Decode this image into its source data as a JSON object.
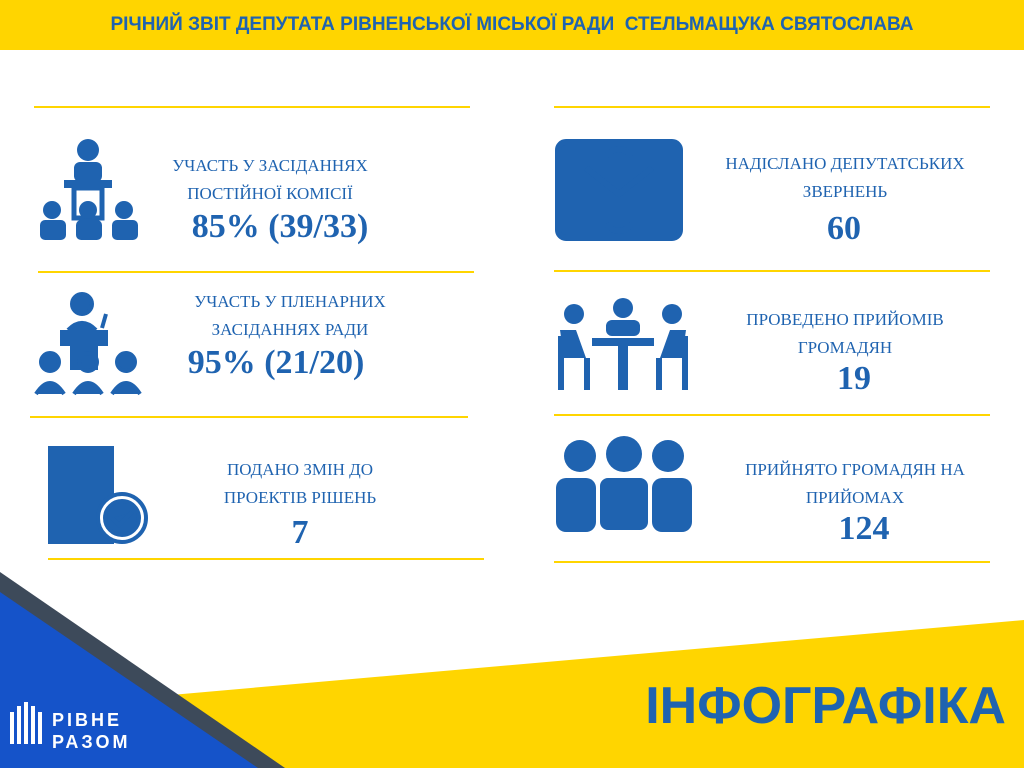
{
  "header": {
    "title": "РІЧНИЙ ЗВІТ ДЕПУТАТА РІВНЕНСЬКОЇ МІСЬКОЇ РАДИ  СТЕЛЬМАЩУКА СВЯТОСЛАВА"
  },
  "items": [
    {
      "label": [
        "УЧАСТЬ У ЗАСІДАННЯХ",
        "ПОСТІЙНОЇ КОМІСІЇ"
      ],
      "value": "85% (39/33)"
    },
    {
      "label": [
        "УЧАСТЬ У ПЛЕНАРНИХ",
        "ЗАСІДАННЯХ РАДИ"
      ],
      "value": "95% (21/20)"
    },
    {
      "label": [
        "ПОДАНО ЗМІН ДО",
        "ПРОЕКТІВ РІШЕНЬ"
      ],
      "value": 7
    },
    {
      "label": [
        "НАДІСЛАНО ДЕПУТАТСЬКИХ",
        "ЗВЕРНЕНЬ"
      ],
      "value": 60
    },
    {
      "label": [
        "ПРОВЕДЕНО ПРИЙОМІВ",
        "ГРОМАДЯН"
      ],
      "value": 19
    },
    {
      "label": [
        "ПРИЙНЯТО ГРОМАДЯН НА",
        "ПРИЙОМАХ"
      ],
      "value": 124
    }
  ],
  "footer": {
    "title": "ІНФОГРАФІКА",
    "logo": [
      "РІВНЕ",
      "РАЗОМ"
    ]
  }
}
